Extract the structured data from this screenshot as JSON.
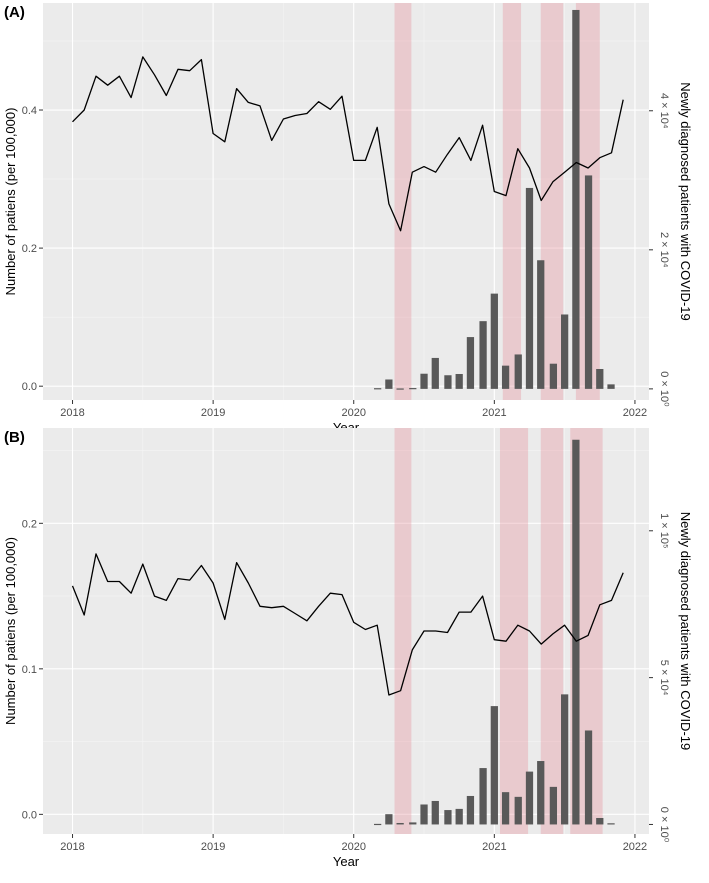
{
  "chart_data": [
    {
      "panel": "(A)",
      "type": "bar+line",
      "xlabel": "Year",
      "ylabel_left": "Number of patiens (per 100,000)",
      "ylabel_right": "Newly diagnosed patients with COVID-19",
      "x_ticks": [
        "2018",
        "2019",
        "2020",
        "2021",
        "2022"
      ],
      "y_left_ticks": [
        "0.0",
        "0.2",
        "0.4"
      ],
      "y_left_tick_values": [
        0,
        0.2,
        0.4
      ],
      "y_right_ticks": [
        "0 × 10⁰",
        "2 × 10⁴",
        "4 × 10⁴"
      ],
      "y_right_tick_values": [
        0,
        20000,
        40000
      ],
      "xlim": [
        2017.79,
        2022.1
      ],
      "ylim_left": [
        -0.02,
        0.555
      ],
      "ylim_right": [
        -1600,
        55500
      ],
      "shaded_periods": [
        [
          2020.29,
          2020.41
        ],
        [
          2021.06,
          2021.19
        ],
        [
          2021.33,
          2021.49
        ],
        [
          2021.58,
          2021.75
        ]
      ],
      "line_series": {
        "name": "Number of patiens (per 100,000)",
        "x_start": 2018.0,
        "x_step": 0.08333,
        "values": [
          0.383,
          0.4,
          0.449,
          0.436,
          0.449,
          0.418,
          0.477,
          0.451,
          0.421,
          0.459,
          0.457,
          0.473,
          0.366,
          0.354,
          0.431,
          0.411,
          0.406,
          0.356,
          0.387,
          0.392,
          0.395,
          0.412,
          0.401,
          0.42,
          0.327,
          0.327,
          0.375,
          0.264,
          0.225,
          0.31,
          0.318,
          0.31,
          0.336,
          0.36,
          0.327,
          0.378,
          0.282,
          0.276,
          0.344,
          0.316,
          0.269,
          0.296,
          0.31,
          0.324,
          0.316,
          0.331,
          0.338,
          0.415
        ]
      },
      "bar_series": {
        "name": "Newly diagnosed patients with COVID-19",
        "x": [
          2020.17,
          2020.25,
          2020.33,
          2020.42,
          2020.5,
          2020.58,
          2020.67,
          2020.75,
          2020.83,
          2020.92,
          2021.0,
          2021.08,
          2021.17,
          2021.25,
          2021.33,
          2021.42,
          2021.5,
          2021.58,
          2021.67,
          2021.75,
          2021.83
        ],
        "values": [
          100,
          1350,
          60,
          120,
          2180,
          4450,
          1960,
          2140,
          7450,
          9740,
          13700,
          3340,
          4950,
          28900,
          18500,
          3620,
          10700,
          54500,
          30700,
          2860,
          650
        ]
      }
    },
    {
      "panel": "(B)",
      "type": "bar+line",
      "xlabel": "Year",
      "ylabel_left": "Number of patiens (per 100,000)",
      "ylabel_right": "Newly diagnosed patients with COVID-19",
      "x_ticks": [
        "2018",
        "2019",
        "2020",
        "2021",
        "2022"
      ],
      "y_left_ticks": [
        "0.0",
        "0.1",
        "0.2"
      ],
      "y_left_tick_values": [
        0,
        0.1,
        0.2
      ],
      "y_right_ticks": [
        "0 × 10⁰",
        "5 × 10⁴",
        "1 × 10⁵"
      ],
      "y_right_tick_values": [
        0,
        50000,
        100000
      ],
      "xlim": [
        2017.79,
        2022.1
      ],
      "ylim_left": [
        -0.0135,
        0.2655
      ],
      "ylim_right": [
        -3250,
        135000
      ],
      "shaded_periods": [
        [
          2020.29,
          2020.41
        ],
        [
          2021.04,
          2021.24
        ],
        [
          2021.33,
          2021.49
        ],
        [
          2021.54,
          2021.77
        ]
      ],
      "line_series": {
        "name": "Number of patiens (per 100,000)",
        "x_start": 2018.0,
        "x_step": 0.08333,
        "values": [
          0.157,
          0.137,
          0.179,
          0.16,
          0.16,
          0.152,
          0.172,
          0.15,
          0.147,
          0.162,
          0.161,
          0.171,
          0.159,
          0.134,
          0.173,
          0.159,
          0.143,
          0.142,
          0.143,
          0.138,
          0.133,
          0.143,
          0.152,
          0.151,
          0.132,
          0.127,
          0.13,
          0.082,
          0.085,
          0.113,
          0.126,
          0.126,
          0.125,
          0.139,
          0.139,
          0.15,
          0.12,
          0.119,
          0.13,
          0.126,
          0.117,
          0.124,
          0.13,
          0.119,
          0.123,
          0.144,
          0.147,
          0.166
        ]
      },
      "bar_series": {
        "name": "Newly diagnosed patients with COVID-19",
        "x": [
          2020.17,
          2020.25,
          2020.33,
          2020.42,
          2020.5,
          2020.58,
          2020.67,
          2020.75,
          2020.83,
          2020.92,
          2021.0,
          2021.08,
          2021.17,
          2021.25,
          2021.33,
          2021.42,
          2021.5,
          2021.58,
          2021.67,
          2021.75,
          2021.83
        ],
        "values": [
          200,
          3500,
          500,
          700,
          6800,
          8000,
          4900,
          5300,
          9700,
          19200,
          40300,
          11000,
          9400,
          18000,
          21600,
          12800,
          44300,
          131000,
          32000,
          2200,
          400
        ]
      }
    }
  ]
}
